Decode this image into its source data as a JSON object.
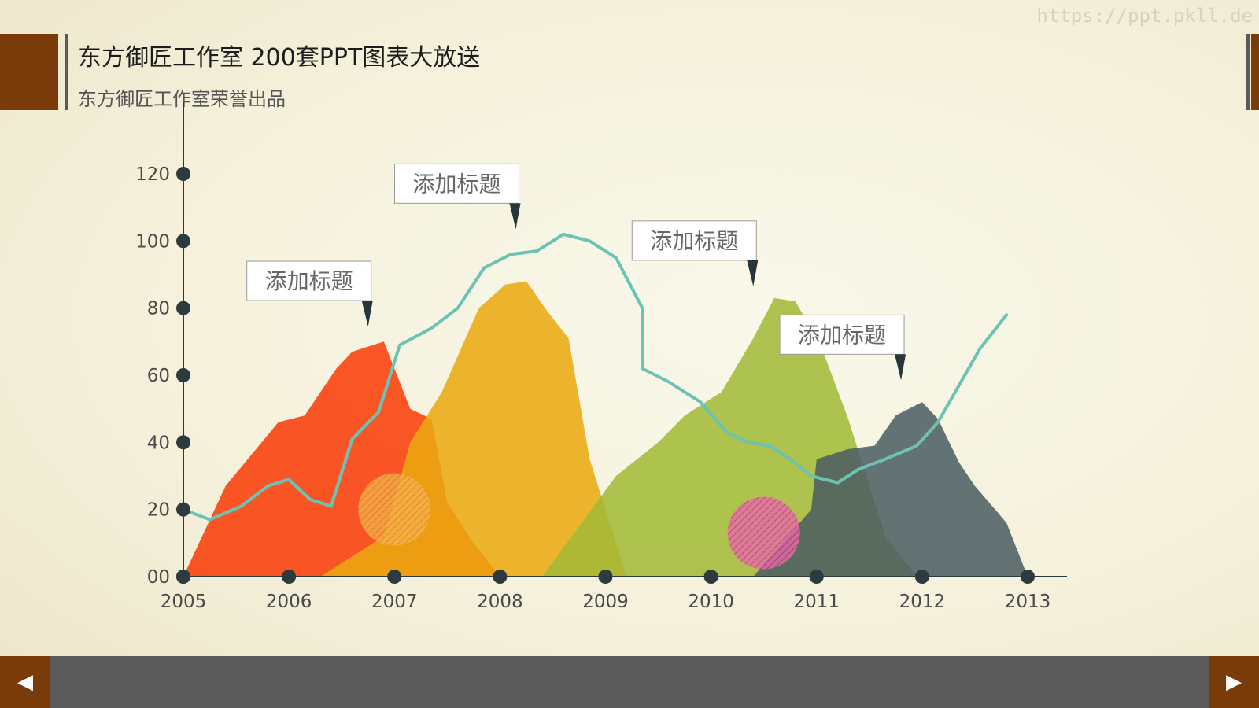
{
  "header": {
    "title": "东方御匠工作室  200套PPT图表大放送",
    "subtitle": "东方御匠工作室荣誉出品",
    "watermark": "https://ppt.pkll.de"
  },
  "nav": {
    "prev_icon": "◀",
    "next_icon": "▶"
  },
  "colors": {
    "axis": "#2b3b3f",
    "tick_label": "#4a4a4a",
    "area_red": "#f93a06",
    "area_orange": "#eaa90e",
    "area_olive": "#a2b935",
    "area_slate": "#4b5c61",
    "line_main": "#6cc3b4",
    "brand": "#7a3b0a",
    "footer": "#5a5a5a"
  },
  "chart_data": {
    "type": "area",
    "x_ticks": [
      "2005",
      "2006",
      "2007",
      "2008",
      "2009",
      "2010",
      "2011",
      "2012",
      "2013"
    ],
    "y_ticks": [
      "00",
      "20",
      "40",
      "60",
      "80",
      "100",
      "120"
    ],
    "ylim": [
      0,
      120
    ],
    "xlim": [
      2005,
      2013
    ],
    "series": [
      {
        "key": "red",
        "points": [
          [
            2005.0,
            0
          ],
          [
            2005.4,
            27
          ],
          [
            2005.9,
            46
          ],
          [
            2006.15,
            48
          ],
          [
            2006.45,
            62
          ],
          [
            2006.6,
            67
          ],
          [
            2006.9,
            70
          ],
          [
            2007.15,
            50
          ],
          [
            2007.35,
            47
          ],
          [
            2007.5,
            22
          ],
          [
            2007.75,
            10
          ],
          [
            2008.0,
            0
          ]
        ]
      },
      {
        "key": "orange",
        "points": [
          [
            2006.3,
            0
          ],
          [
            2006.9,
            12
          ],
          [
            2007.15,
            40
          ],
          [
            2007.45,
            55
          ],
          [
            2007.8,
            80
          ],
          [
            2008.05,
            87
          ],
          [
            2008.25,
            88
          ],
          [
            2008.45,
            79
          ],
          [
            2008.65,
            71
          ],
          [
            2008.85,
            35
          ],
          [
            2009.2,
            0
          ]
        ]
      },
      {
        "key": "olive",
        "points": [
          [
            2008.4,
            0
          ],
          [
            2009.1,
            30
          ],
          [
            2009.5,
            40
          ],
          [
            2009.75,
            48
          ],
          [
            2010.1,
            55
          ],
          [
            2010.4,
            71
          ],
          [
            2010.6,
            83
          ],
          [
            2010.8,
            82
          ],
          [
            2011.05,
            68
          ],
          [
            2011.3,
            47
          ],
          [
            2011.65,
            12
          ],
          [
            2011.95,
            0
          ]
        ]
      },
      {
        "key": "slate",
        "points": [
          [
            2010.4,
            0
          ],
          [
            2010.95,
            20
          ],
          [
            2011.0,
            35
          ],
          [
            2011.3,
            38
          ],
          [
            2011.55,
            39
          ],
          [
            2011.75,
            48
          ],
          [
            2012.0,
            52
          ],
          [
            2012.15,
            47
          ],
          [
            2012.35,
            34
          ],
          [
            2012.5,
            27
          ],
          [
            2012.8,
            16
          ],
          [
            2013.0,
            0
          ]
        ]
      }
    ],
    "line": {
      "key": "main",
      "points": [
        [
          2005.0,
          20
        ],
        [
          2005.25,
          17
        ],
        [
          2005.55,
          21
        ],
        [
          2005.8,
          27
        ],
        [
          2006.0,
          29
        ],
        [
          2006.2,
          23
        ],
        [
          2006.4,
          21
        ],
        [
          2006.6,
          41
        ],
        [
          2006.85,
          49
        ],
        [
          2007.05,
          69
        ],
        [
          2007.35,
          74
        ],
        [
          2007.6,
          80
        ],
        [
          2007.85,
          92
        ],
        [
          2008.1,
          96
        ],
        [
          2008.35,
          97
        ],
        [
          2008.6,
          102
        ],
        [
          2008.85,
          100
        ],
        [
          2009.1,
          95
        ],
        [
          2009.35,
          80
        ],
        [
          2009.35,
          62
        ],
        [
          2009.6,
          58
        ],
        [
          2009.9,
          52
        ],
        [
          2010.15,
          43
        ],
        [
          2010.35,
          40
        ],
        [
          2010.55,
          39
        ],
        [
          2010.75,
          35
        ],
        [
          2010.95,
          30
        ],
        [
          2011.2,
          28
        ],
        [
          2011.4,
          32
        ],
        [
          2011.65,
          35
        ],
        [
          2011.95,
          39
        ],
        [
          2012.15,
          46
        ],
        [
          2012.35,
          57
        ],
        [
          2012.55,
          68
        ],
        [
          2012.8,
          78
        ]
      ]
    },
    "callouts": [
      {
        "text": "添加标题",
        "x": 2006.75,
        "y": 71
      },
      {
        "text": "添加标题",
        "x": 2008.15,
        "y": 100
      },
      {
        "text": "添加标题",
        "x": 2010.4,
        "y": 83
      },
      {
        "text": "添加标题",
        "x": 2011.8,
        "y": 55
      }
    ],
    "highlights": [
      {
        "key": "orange",
        "x": 2007.0,
        "y": 20,
        "color": "#f0a234"
      },
      {
        "key": "pink",
        "x": 2010.5,
        "y": 13,
        "color": "#e34ea4"
      }
    ]
  }
}
